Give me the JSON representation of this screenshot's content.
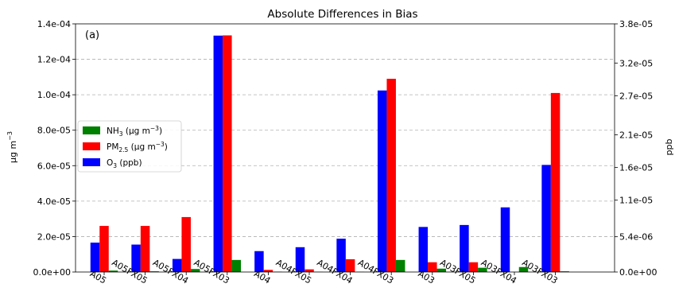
{
  "chart_data": {
    "type": "bar",
    "title": "Absolute Differences in Bias",
    "annotation": "(a)",
    "categories": [
      "A05",
      "A05FX05",
      "A05FX04",
      "A05FX03",
      "A04",
      "A04FX05",
      "A04FX04",
      "A04FX03",
      "A03",
      "A03FX05",
      "A03FX04",
      "A03FX03"
    ],
    "y_left": {
      "label": "µg m",
      "label_sup": "−3",
      "lim": [
        0,
        0.00014
      ],
      "ticks": [
        {
          "value": 0,
          "label": "0.0e+00"
        },
        {
          "value": 2e-05,
          "label": "2.0e-05"
        },
        {
          "value": 4e-05,
          "label": "4.0e-05"
        },
        {
          "value": 6e-05,
          "label": "6.0e-05"
        },
        {
          "value": 8e-05,
          "label": "8.0e-05"
        },
        {
          "value": 0.0001,
          "label": "1.0e-04"
        },
        {
          "value": 0.00012,
          "label": "1.2e-04"
        },
        {
          "value": 0.00014,
          "label": "1.4e-04"
        }
      ]
    },
    "y_right": {
      "label": "ppb",
      "lim": [
        0,
        3.8e-05
      ],
      "ticks": [
        {
          "value": 0,
          "label": "0.0e+00"
        },
        {
          "value": 5.4e-06,
          "label": "5.4e-06"
        },
        {
          "value": 1.1e-05,
          "label": "1.1e-05"
        },
        {
          "value": 1.6e-05,
          "label": "1.6e-05"
        },
        {
          "value": 2.1e-05,
          "label": "2.1e-05"
        },
        {
          "value": 2.7e-05,
          "label": "2.7e-05"
        },
        {
          "value": 3.2e-05,
          "label": "3.2e-05"
        },
        {
          "value": 3.8e-05,
          "label": "3.8e-05"
        }
      ]
    },
    "grid": "horizontal-dashed",
    "legend_position": "center-left",
    "series": [
      {
        "key": "o3",
        "legend_main": "O",
        "legend_sub": "3",
        "legend_tail": " (ppb)",
        "color": "#0000ff",
        "axis": "right",
        "values": [
          4.5e-06,
          4.2e-06,
          2e-06,
          3.62e-05,
          3.2e-06,
          3.8e-06,
          5.1e-06,
          2.78e-05,
          6.9e-06,
          7.2e-06,
          9.9e-06,
          1.64e-05
        ]
      },
      {
        "key": "pm25",
        "legend_main": "PM",
        "legend_sub": "2.5",
        "legend_tail": " (µg m",
        "legend_sup": "−3",
        "legend_end": ")",
        "color": "#ff0000",
        "axis": "left",
        "values": [
          2.6e-05,
          2.6e-05,
          3.1e-05,
          0.0001335,
          1.2e-06,
          1.5e-06,
          7.2e-06,
          0.000109,
          5.5e-06,
          5.5e-06,
          0,
          0.000101
        ]
      },
      {
        "key": "nh3",
        "legend_main": "NH",
        "legend_sub": "3",
        "legend_tail": " (µg m",
        "legend_sup": "−3",
        "legend_end": ")",
        "color": "#008000",
        "axis": "left",
        "values": [
          8e-07,
          4e-07,
          1.7e-06,
          6.8e-06,
          2e-07,
          1e-07,
          1e-07,
          6.8e-06,
          1.9e-06,
          2.4e-06,
          2.8e-06,
          4e-07
        ]
      }
    ],
    "legend_order": [
      "nh3",
      "pm25",
      "o3"
    ]
  }
}
